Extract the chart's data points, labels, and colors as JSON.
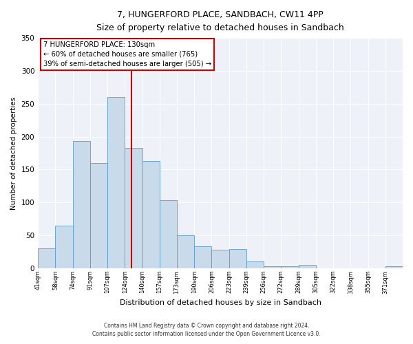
{
  "title": "7, HUNGERFORD PLACE, SANDBACH, CW11 4PP",
  "subtitle": "Size of property relative to detached houses in Sandbach",
  "xlabel": "Distribution of detached houses by size in Sandbach",
  "ylabel": "Number of detached properties",
  "bin_labels": [
    "41sqm",
    "58sqm",
    "74sqm",
    "91sqm",
    "107sqm",
    "124sqm",
    "140sqm",
    "157sqm",
    "173sqm",
    "190sqm",
    "206sqm",
    "223sqm",
    "239sqm",
    "256sqm",
    "272sqm",
    "289sqm",
    "305sqm",
    "322sqm",
    "338sqm",
    "355sqm",
    "371sqm"
  ],
  "bar_heights": [
    30,
    65,
    193,
    160,
    260,
    183,
    163,
    103,
    50,
    33,
    28,
    29,
    10,
    3,
    3,
    5,
    0,
    0,
    0,
    0,
    3
  ],
  "bar_color": "#c9daea",
  "bar_edge_color": "#5b9bd5",
  "vline_color": "#cc0000",
  "ylim": [
    0,
    350
  ],
  "yticks": [
    0,
    50,
    100,
    150,
    200,
    250,
    300,
    350
  ],
  "annotation_title": "7 HUNGERFORD PLACE: 130sqm",
  "annotation_line1": "← 60% of detached houses are smaller (765)",
  "annotation_line2": "39% of semi-detached houses are larger (505) →",
  "annotation_box_color": "#ffffff",
  "annotation_box_edge": "#cc0000",
  "footnote1": "Contains HM Land Registry data © Crown copyright and database right 2024.",
  "footnote2": "Contains public sector information licensed under the Open Government Licence v3.0.",
  "background_color": "#eef2f8",
  "fig_background": "#ffffff"
}
